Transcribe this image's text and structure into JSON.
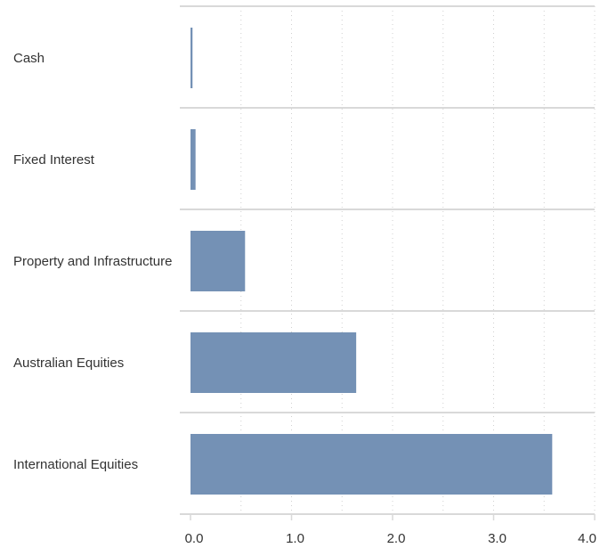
{
  "chart_data": {
    "type": "bar",
    "orientation": "horizontal",
    "title": "",
    "xlabel": "",
    "ylabel": "",
    "categories": [
      "Cash",
      "Fixed Interest",
      "Property and Infrastructure",
      "Australian Equities",
      "International Equities"
    ],
    "values": [
      0.02,
      0.05,
      0.54,
      1.64,
      3.58
    ],
    "xlim": [
      0,
      4.0
    ],
    "x_ticks": [
      "0.0",
      "1.0",
      "2.0",
      "3.0",
      "4.0"
    ],
    "x_tick_values": [
      0,
      1,
      2,
      3,
      4
    ],
    "grid": "vertical dotted at major and minor ticks",
    "legend": "none",
    "colors": {
      "bar": "#7491b5",
      "separator": "#d9d9d9",
      "grid": "#d0d0d0",
      "text": "#333333"
    }
  }
}
